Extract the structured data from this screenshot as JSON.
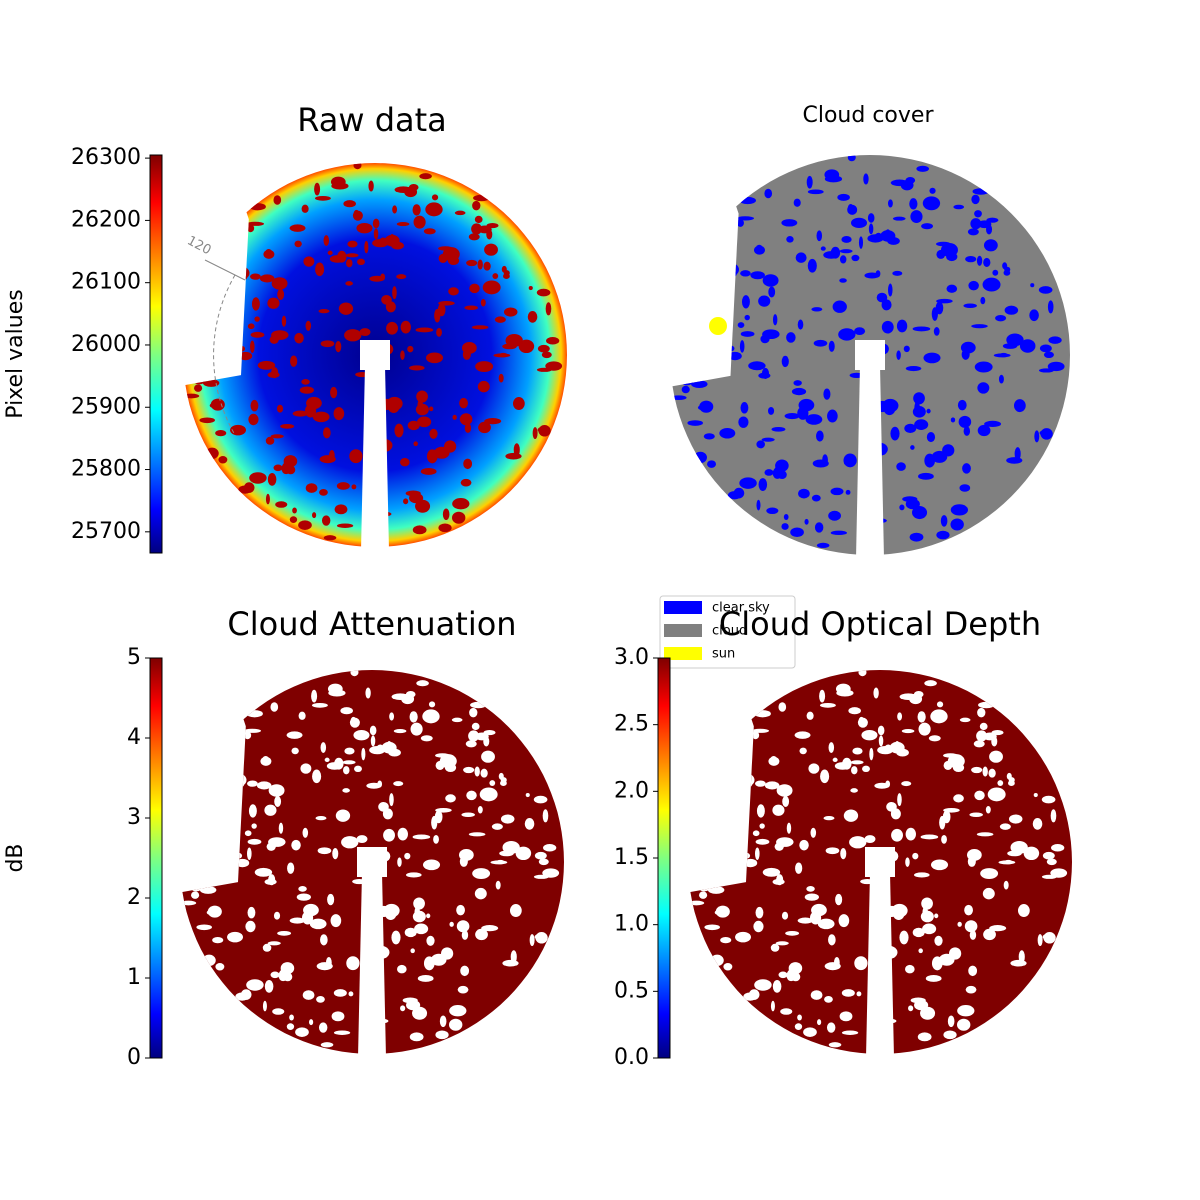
{
  "chart_data": [
    {
      "type": "image",
      "title": "Raw data",
      "colormap": "jet",
      "ylabel": "Pixel values",
      "ylim": [
        25666,
        26305
      ],
      "yticks": [
        25700,
        25800,
        25900,
        26000,
        26100,
        26200,
        26300
      ],
      "annotation": "120"
    },
    {
      "type": "classes",
      "title": "Cloud cover",
      "series": [
        {
          "name": "clear sky",
          "color": "#0000ff"
        },
        {
          "name": "cloud",
          "color": "#808080"
        },
        {
          "name": "sun",
          "color": "#ffff00"
        }
      ]
    },
    {
      "type": "image",
      "title": "Cloud Attenuation",
      "colormap": "jet",
      "ylabel": "dB",
      "ylim": [
        0,
        5
      ],
      "yticks": [
        0,
        1,
        2,
        3,
        4,
        5
      ]
    },
    {
      "type": "image",
      "title": "Cloud Optical Depth",
      "colormap": "jet",
      "ylim": [
        0,
        3
      ],
      "yticks": [
        {
          "value": 0,
          "label": "0.0"
        },
        {
          "value": 0.5,
          "label": "0.5"
        },
        {
          "value": 1,
          "label": "1.0"
        },
        {
          "value": 1.5,
          "label": "1.5"
        },
        {
          "value": 2,
          "label": "2.0"
        },
        {
          "value": 2.5,
          "label": "2.5"
        },
        {
          "value": 3,
          "label": "3.0"
        }
      ]
    }
  ]
}
